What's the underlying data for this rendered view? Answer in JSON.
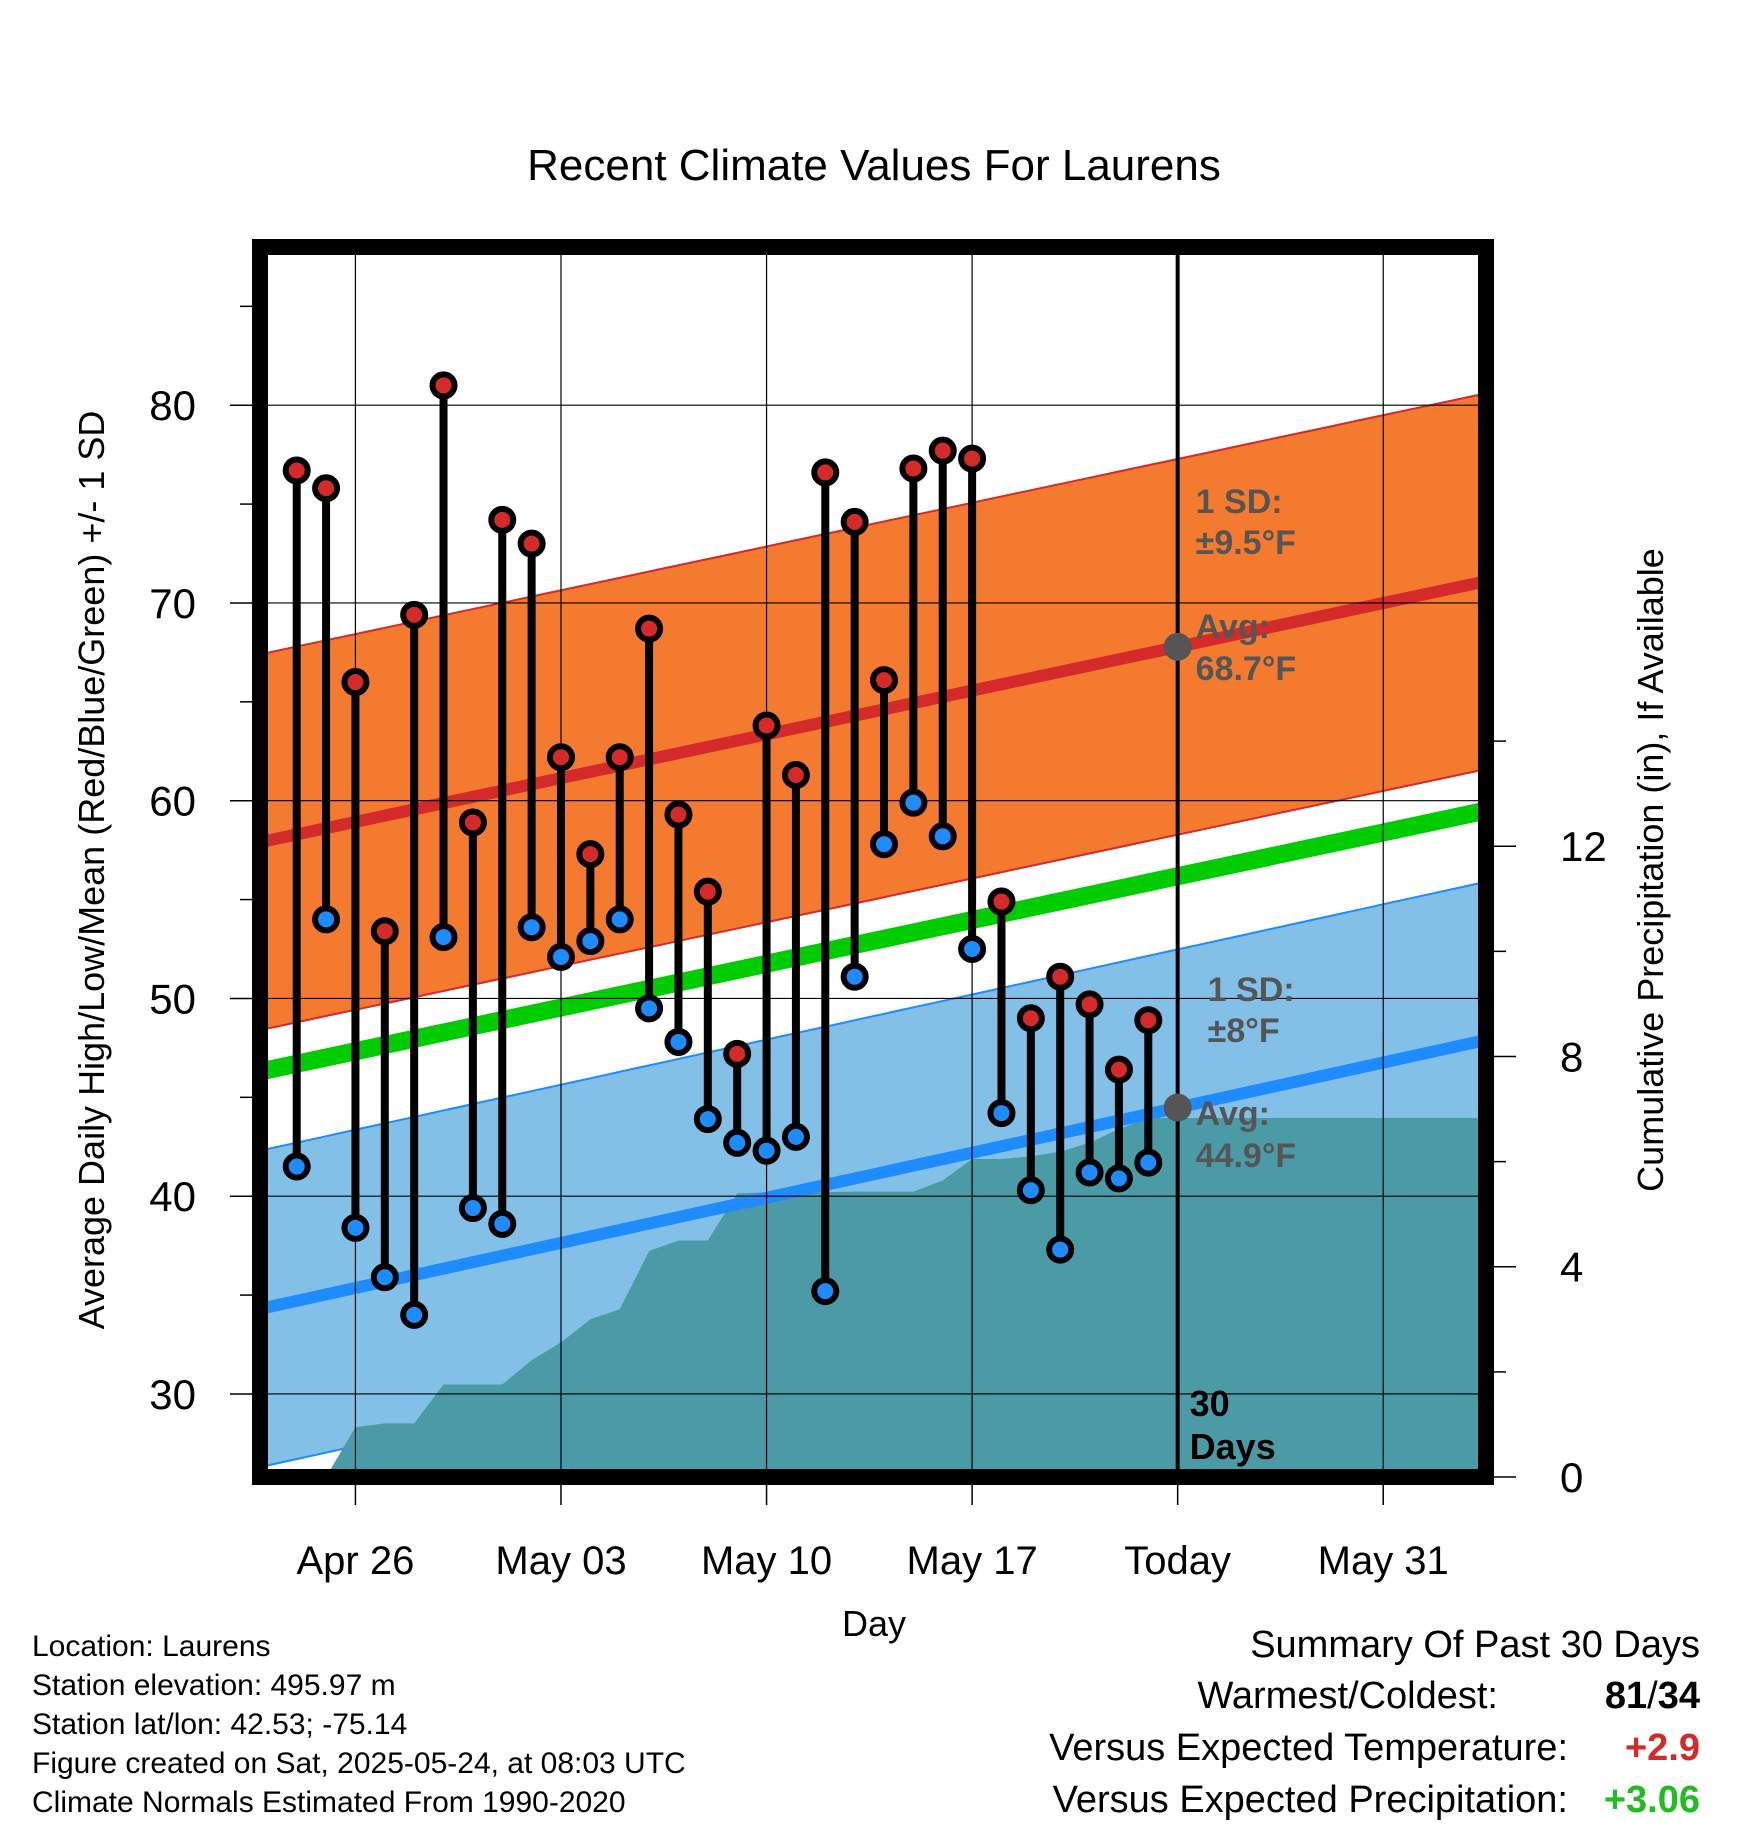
{
  "chart_data": {
    "type": "line",
    "title": "Recent Climate Values For Laurens",
    "xlabel": "Day",
    "ylabel_left": "Average Daily High/Low/Mean (Red/Blue/Green) +/- 1 SD",
    "ylabel_right": "Cumulative Precipitation (in), If Available",
    "x_ticks": [
      "Apr 26",
      "May 03",
      "May 10",
      "May 17",
      "Today",
      "May 31"
    ],
    "x_tick_dates": [
      "2025-04-26",
      "2025-05-03",
      "2025-05-10",
      "2025-05-17",
      "2025-05-24",
      "2025-05-31"
    ],
    "xlim": [
      "2025-04-22 18:00",
      "2025-06-03 12:00"
    ],
    "y_left_ticks": [
      30,
      40,
      50,
      60,
      70,
      80
    ],
    "ylim_left": [
      25.8,
      88
    ],
    "y_right_ticks": [
      0,
      4,
      8,
      12
    ],
    "ylim_right": [
      0,
      23.4
    ],
    "grid": true,
    "normals": {
      "high_avg_start": 57.9,
      "high_avg_end": 71.1,
      "high_sd": 9.5,
      "low_avg_start": 34.3,
      "low_avg_end": 47.9,
      "low_sd": 8,
      "mean_start": 46.3,
      "mean_end": 59.5
    },
    "annotations": {
      "high_sd_label": "1 SD:",
      "high_sd_value": "±9.5°F",
      "high_avg_label": "Avg:",
      "high_avg_value": "68.7°F",
      "low_sd_label": "1 SD:",
      "low_sd_value": "±8°F",
      "low_avg_label": "Avg:",
      "low_avg_value": "44.9°F",
      "period_number": "30",
      "period_unit": "Days"
    },
    "daily": {
      "dates": [
        "2025-04-24",
        "2025-04-25",
        "2025-04-26",
        "2025-04-27",
        "2025-04-28",
        "2025-04-29",
        "2025-04-30",
        "2025-05-01",
        "2025-05-02",
        "2025-05-03",
        "2025-05-04",
        "2025-05-05",
        "2025-05-06",
        "2025-05-07",
        "2025-05-08",
        "2025-05-09",
        "2025-05-10",
        "2025-05-11",
        "2025-05-12",
        "2025-05-13",
        "2025-05-14",
        "2025-05-15",
        "2025-05-16",
        "2025-05-17",
        "2025-05-18",
        "2025-05-19",
        "2025-05-20",
        "2025-05-21",
        "2025-05-22",
        "2025-05-23"
      ],
      "high": [
        76.7,
        75.8,
        66.0,
        53.4,
        69.4,
        81.0,
        58.9,
        74.2,
        73.0,
        62.2,
        57.3,
        62.2,
        68.7,
        59.3,
        55.4,
        47.2,
        63.8,
        61.3,
        76.6,
        74.1,
        66.1,
        76.8,
        77.7,
        77.3,
        54.9,
        49.0,
        51.1,
        49.7,
        46.4,
        48.9
      ],
      "low": [
        41.5,
        54.0,
        38.4,
        35.9,
        34.0,
        53.1,
        39.4,
        38.6,
        53.6,
        52.1,
        52.9,
        54.0,
        49.5,
        47.8,
        43.9,
        42.7,
        42.3,
        43.0,
        35.2,
        51.1,
        57.8,
        59.9,
        58.2,
        52.5,
        44.2,
        40.3,
        37.3,
        41.2,
        40.9,
        41.7
      ]
    },
    "precip": {
      "dates": [
        "2025-04-24",
        "2025-04-25",
        "2025-04-26",
        "2025-04-27",
        "2025-04-28",
        "2025-04-29",
        "2025-04-30",
        "2025-05-01",
        "2025-05-02",
        "2025-05-03",
        "2025-05-04",
        "2025-05-05",
        "2025-05-06",
        "2025-05-07",
        "2025-05-08",
        "2025-05-09",
        "2025-05-10",
        "2025-05-11",
        "2025-05-12",
        "2025-05-13",
        "2025-05-14",
        "2025-05-15",
        "2025-05-16",
        "2025-05-17",
        "2025-05-18",
        "2025-05-19",
        "2025-05-20",
        "2025-05-21",
        "2025-05-22",
        "2025-05-23",
        "2025-05-24"
      ],
      "cumulative": [
        0.0,
        0.0,
        0.95,
        1.02,
        1.02,
        1.76,
        1.76,
        1.76,
        2.22,
        2.56,
        3.0,
        3.19,
        4.3,
        4.5,
        4.5,
        5.4,
        5.41,
        5.41,
        5.42,
        5.43,
        5.43,
        5.43,
        5.64,
        6.05,
        6.05,
        6.1,
        6.19,
        6.36,
        6.62,
        6.83,
        6.83
      ]
    },
    "summary": {
      "heading": "Summary Of Past 30 Days",
      "warmest_coldest_label": "Warmest/Coldest:",
      "warmest": "81",
      "separator": "/",
      "coldest": "34",
      "temp_label": "Versus Expected Temperature:",
      "temp_value": "+2.9",
      "precip_label": "Versus Expected Precipitation:",
      "precip_value": "+3.06"
    },
    "info": {
      "location": "Location: Laurens",
      "elevation": "Station elevation: 495.97 m",
      "latlon": "Station lat/lon: 42.53; -75.14",
      "created": "Figure created on Sat, 2025-05-24, at 08:03 UTC",
      "normals": "Climate Normals Estimated From 1990-2020"
    },
    "colors": {
      "high_band": "#f47a30",
      "high_line": "#d42a2a",
      "low_band": "#82c0e8",
      "low_line": "#1e8cff",
      "mean_line": "#00cc00",
      "precip": "#4a9ba6",
      "high_dot": "#d42a2a",
      "low_dot": "#1e8cff",
      "annotation": "#555555",
      "positive_temp": "#d42a2a",
      "positive_precip": "#22bb22"
    }
  }
}
